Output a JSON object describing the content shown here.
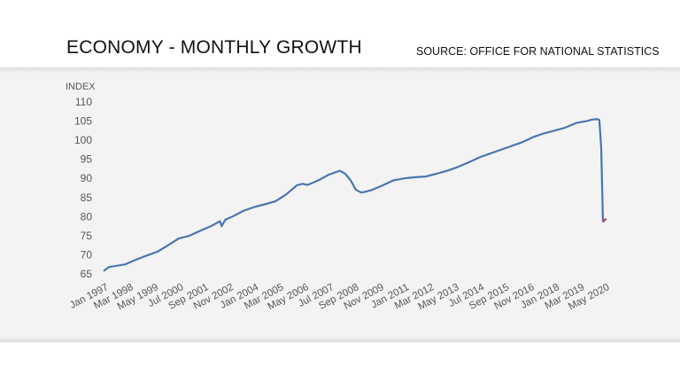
{
  "header": {
    "title": "ECONOMY - MONTHLY GROWTH",
    "source": "SOURCE: OFFICE FOR NATIONAL STATISTICS"
  },
  "colors": {
    "line": "#4a76b0",
    "last_segment": "#b04a55",
    "panel": "#f3f3f3"
  },
  "chart_data": {
    "type": "line",
    "ylabel": "INDEX",
    "xlabel": "",
    "ylim": [
      65,
      110
    ],
    "yticks": [
      65,
      70,
      75,
      80,
      85,
      90,
      95,
      100,
      105,
      110
    ],
    "grid": false,
    "x_tick_labels": [
      "Jan 1997",
      "Mar 1998",
      "May 1999",
      "Jul 2000",
      "Sep 2001",
      "Nov 2002",
      "Jan 2004",
      "Mar 2005",
      "May 2006",
      "Jul 2007",
      "Sep 2008",
      "Nov 2009",
      "Jan 2011",
      "Mar 2012",
      "May 2013",
      "Jul 2014",
      "Sep 2015",
      "Nov 2016",
      "Jan 2018",
      "Mar 2019",
      "May 2020"
    ],
    "series": [
      {
        "x": [
          "1997-01",
          "1997-04",
          "1998-01",
          "1998-07",
          "1999-01",
          "1999-07",
          "2000-01",
          "2000-07",
          "2001-01",
          "2001-07",
          "2002-01",
          "2002-06",
          "2002-07",
          "2002-09",
          "2003-01",
          "2003-07",
          "2004-01",
          "2004-07",
          "2005-01",
          "2005-07",
          "2006-01",
          "2006-04",
          "2006-07",
          "2007-01",
          "2007-07",
          "2008-01",
          "2008-04",
          "2008-07",
          "2008-10",
          "2009-01",
          "2009-04",
          "2009-07",
          "2010-01",
          "2010-07",
          "2011-01",
          "2011-07",
          "2012-01",
          "2012-07",
          "2013-01",
          "2013-07",
          "2014-01",
          "2014-07",
          "2015-01",
          "2015-07",
          "2016-01",
          "2016-07",
          "2017-01",
          "2017-07",
          "2018-01",
          "2018-07",
          "2019-01",
          "2019-07",
          "2019-10",
          "2020-01",
          "2020-02",
          "2020-03",
          "2020-04",
          "2020-05"
        ],
        "values": [
          65.8,
          66.8,
          67.5,
          68.7,
          69.8,
          70.8,
          72.5,
          74.3,
          75.0,
          76.3,
          77.5,
          78.8,
          77.5,
          79.2,
          80.0,
          81.5,
          82.5,
          83.2,
          84.0,
          85.8,
          88.2,
          88.6,
          88.3,
          89.5,
          91.0,
          92.0,
          91.2,
          89.5,
          87.0,
          86.3,
          86.6,
          87.0,
          88.2,
          89.5,
          90.0,
          90.3,
          90.5,
          91.2,
          92.0,
          93.0,
          94.2,
          95.5,
          96.5,
          97.5,
          98.5,
          99.5,
          100.8,
          101.8,
          102.5,
          103.3,
          104.5,
          105.0,
          105.4,
          105.5,
          105.3,
          98.0,
          78.6,
          79.5
        ]
      }
    ]
  }
}
